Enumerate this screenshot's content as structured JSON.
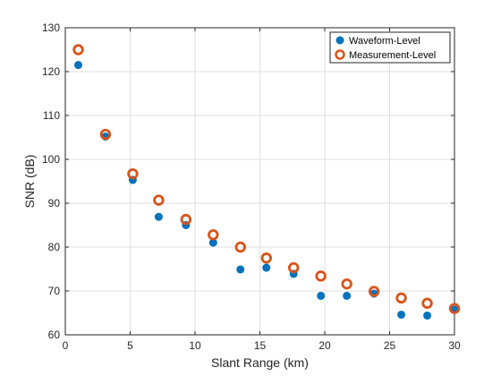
{
  "chart_data": {
    "type": "scatter",
    "title": "",
    "xlabel": "Slant Range (km)",
    "ylabel": "SNR (dB)",
    "xlim": [
      0,
      30
    ],
    "ylim": [
      60,
      130
    ],
    "xticks": [
      0,
      5,
      10,
      15,
      20,
      25,
      30
    ],
    "yticks": [
      60,
      70,
      80,
      90,
      100,
      110,
      120,
      130
    ],
    "grid": true,
    "legend_placement": "top-right",
    "series": [
      {
        "name": "Waveform-Level",
        "marker": "filled-circle",
        "color": "#0072BD",
        "x": [
          1.0,
          3.1,
          5.2,
          7.2,
          9.3,
          11.4,
          13.5,
          15.5,
          17.6,
          19.7,
          21.7,
          23.8,
          25.9,
          27.9,
          30.0
        ],
        "y": [
          121.5,
          105.2,
          95.3,
          86.9,
          85.0,
          81.0,
          74.9,
          75.3,
          73.9,
          68.9,
          68.9,
          69.4,
          64.6,
          64.4,
          65.7
        ]
      },
      {
        "name": "Measurement-Level",
        "marker": "open-circle",
        "color": "#D95319",
        "x": [
          1.0,
          3.1,
          5.2,
          7.2,
          9.3,
          11.4,
          13.5,
          15.5,
          17.6,
          19.7,
          21.7,
          23.8,
          25.9,
          27.9,
          30.0
        ],
        "y": [
          125.0,
          105.7,
          96.7,
          90.7,
          86.3,
          82.8,
          80.0,
          77.5,
          75.3,
          73.4,
          71.6,
          69.9,
          68.4,
          67.2,
          66.0
        ]
      }
    ]
  }
}
